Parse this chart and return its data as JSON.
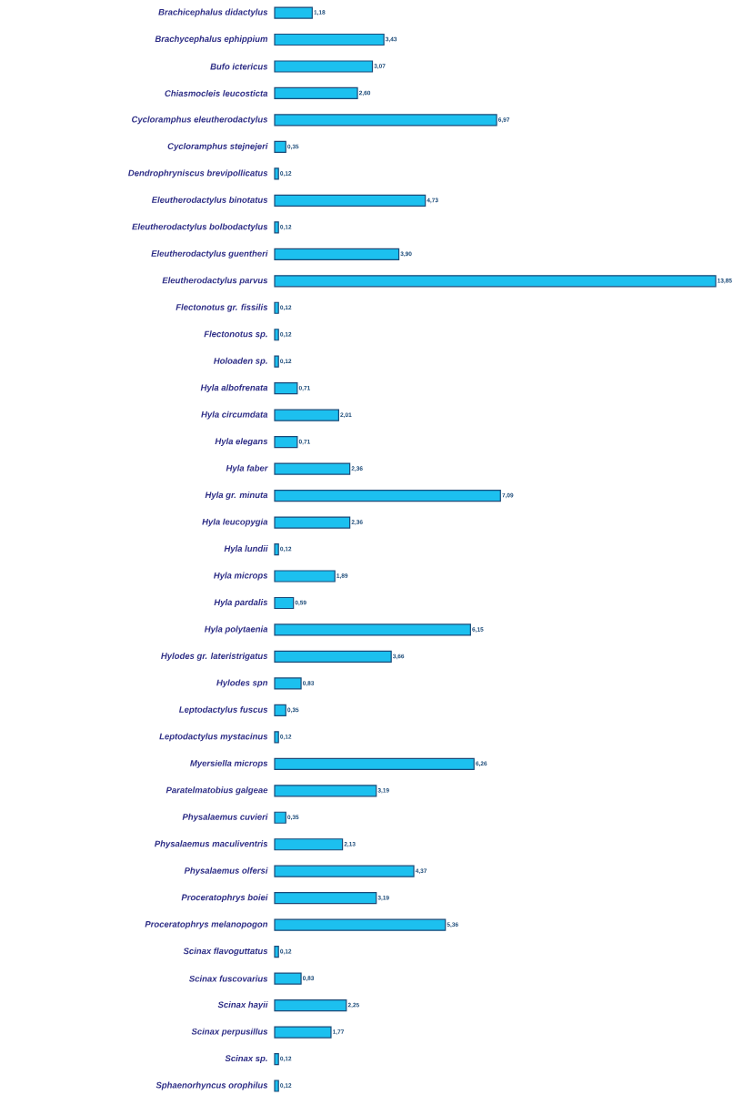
{
  "chart_data": {
    "type": "bar",
    "orientation": "horizontal",
    "color": "#1cc0ef",
    "tick_labels": "y",
    "categories": [
      "Brachicephalus didactylus",
      "Brachycephalus ephippium",
      "Bufo ictericus",
      "Chiasmocleis leucosticta",
      "Cycloramphus eleutherodactylus",
      "Cycloramphus stejnejeri",
      "Dendrophryniscus brevipollicatus",
      "Eleutherodactylus binotatus",
      "Eleutherodactylus bolbodactylus",
      "Eleutherodactylus guentheri",
      "Eleutherodactylus parvus",
      "Flectonotus gr. fissilis",
      "Flectonotus sp.",
      "Holoaden sp.",
      "Hyla albofrenata",
      "Hyla circumdata",
      "Hyla elegans",
      "Hyla faber",
      "Hyla gr. minuta",
      "Hyla leucopygia",
      "Hyla lundii",
      "Hyla microps",
      "Hyla pardalis",
      "Hyla polytaenia",
      "Hylodes gr. lateristrigatus",
      "Hylodes spn",
      "Leptodactylus fuscus",
      "Leptodactylus mystacinus",
      "Myersiella microps",
      "Paratelmatobius  galgeae",
      "Physalaemus cuvieri",
      "Physalaemus maculiventris",
      "Physalaemus olfersi",
      "Proceratophrys boiei",
      "Proceratophrys melanopogon",
      "Scinax flavoguttatus",
      "Scinax fuscovarius",
      "Scinax hayii",
      "Scinax perpusillus",
      "Scinax sp.",
      "Sphaenorhyncus orophilus"
    ],
    "values": [
      1.18,
      3.43,
      3.07,
      2.6,
      6.97,
      0.35,
      0.12,
      4.73,
      0.12,
      3.9,
      13.85,
      0.12,
      0.12,
      0.12,
      0.71,
      2.01,
      0.71,
      2.36,
      7.09,
      2.36,
      0.12,
      1.89,
      0.59,
      6.15,
      3.66,
      0.83,
      0.35,
      0.12,
      6.26,
      3.19,
      0.35,
      2.13,
      4.37,
      3.19,
      5.36,
      0.12,
      0.83,
      2.25,
      1.77,
      0.12,
      0.12
    ],
    "value_labels": [
      "1,18",
      "3,43",
      "3,07",
      "2,60",
      "6,97",
      "0,35",
      "0,12",
      "4,73",
      "0,12",
      "3,90",
      "13,85",
      "0,12",
      "0,12",
      "0,12",
      "0,71",
      "2,01",
      "0,71",
      "2,36",
      "7,09",
      "2,36",
      "0,12",
      "1,89",
      "0,59",
      "6,15",
      "3,66",
      "0,83",
      "0,35",
      "0,12",
      "6,26",
      "3,19",
      "0,35",
      "2,13",
      "4,37",
      "3,19",
      "5,36",
      "0,12",
      "0,83",
      "2,25",
      "1,77",
      "0,12",
      "0,12"
    ]
  }
}
